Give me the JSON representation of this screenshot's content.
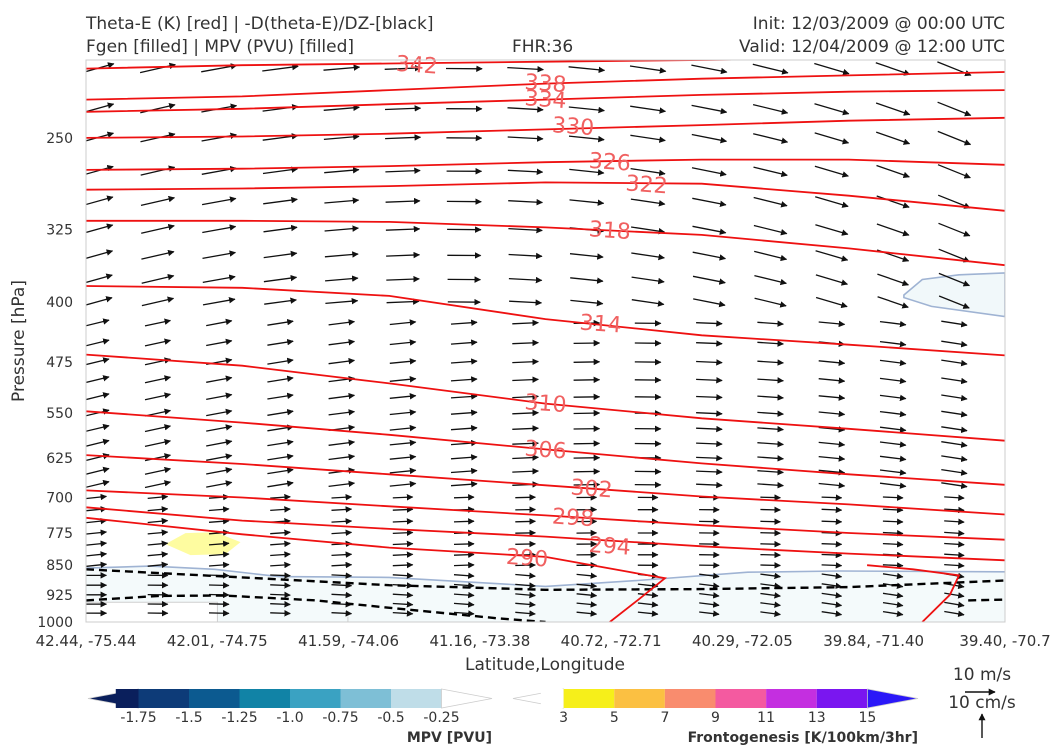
{
  "header": {
    "title_line1": "Theta-E (K) [red] | -D(theta-E)/DZ-[black]",
    "title_line2": "Fgen [filled] | MPV (PVU) [filled]",
    "fhr": "FHR:36",
    "init": "Init: 12/03/2009 @ 00:00 UTC",
    "valid": "Valid: 12/04/2009 @ 12:00 UTC"
  },
  "chart_data": {
    "type": "cross-section",
    "xlabel": "Latitude,Longitude",
    "ylabel": "Pressure [hPa]",
    "x_ticks": [
      "42.44, -75.44",
      "42.01, -74.75",
      "41.59, -74.06",
      "41.16, -73.38",
      "40.72, -72.71",
      "40.29, -72.05",
      "39.84, -71.40",
      "39.40, -70.7"
    ],
    "y_ticks": [
      250,
      325,
      400,
      475,
      550,
      625,
      700,
      775,
      850,
      925,
      1000
    ],
    "ylim": [
      1000,
      200
    ],
    "y_scale": "log",
    "grid": false,
    "theta_e_color": "#ee1111",
    "theta_e_contours": [
      {
        "value": 342,
        "label": "342",
        "points": [
          [
            0,
            205
          ],
          [
            0.17,
            203
          ],
          [
            0.33,
            202
          ],
          [
            0.5,
            201
          ],
          [
            0.67,
            200
          ],
          [
            0.83,
            199
          ],
          [
            1,
            198
          ]
        ]
      },
      {
        "value": 338,
        "label": "338",
        "points": [
          [
            0,
            224
          ],
          [
            0.17,
            222
          ],
          [
            0.33,
            218
          ],
          [
            0.5,
            214
          ],
          [
            0.67,
            211
          ],
          [
            0.83,
            209
          ],
          [
            1,
            207
          ]
        ]
      },
      {
        "value": 334,
        "label": "334",
        "points": [
          [
            0,
            232
          ],
          [
            0.17,
            230
          ],
          [
            0.33,
            227
          ],
          [
            0.5,
            224
          ],
          [
            0.67,
            221
          ],
          [
            0.83,
            219
          ],
          [
            1,
            218
          ]
        ]
      },
      {
        "value": 330,
        "label": "330",
        "points": [
          [
            0,
            250
          ],
          [
            0.17,
            249
          ],
          [
            0.33,
            247
          ],
          [
            0.5,
            244
          ],
          [
            0.67,
            241
          ],
          [
            0.83,
            238
          ],
          [
            1,
            236
          ]
        ]
      },
      {
        "value": 326,
        "label": "326",
        "points": [
          [
            0,
            274
          ],
          [
            0.17,
            273
          ],
          [
            0.33,
            271
          ],
          [
            0.5,
            268
          ],
          [
            0.67,
            266
          ],
          [
            0.83,
            266
          ],
          [
            1,
            270
          ]
        ]
      },
      {
        "value": 322,
        "label": "322",
        "points": [
          [
            0,
            290
          ],
          [
            0.17,
            289
          ],
          [
            0.33,
            287
          ],
          [
            0.5,
            284
          ],
          [
            0.67,
            285
          ],
          [
            0.83,
            295
          ],
          [
            1,
            308
          ]
        ]
      },
      {
        "value": 318,
        "label": "318",
        "points": [
          [
            0,
            317
          ],
          [
            0.17,
            317
          ],
          [
            0.33,
            318
          ],
          [
            0.5,
            323
          ],
          [
            0.67,
            330
          ],
          [
            0.83,
            343
          ],
          [
            1,
            360
          ]
        ]
      },
      {
        "value": 314,
        "label": "314",
        "points": [
          [
            0,
            382
          ],
          [
            0.17,
            384
          ],
          [
            0.33,
            393
          ],
          [
            0.5,
            420
          ],
          [
            0.67,
            440
          ],
          [
            0.83,
            452
          ],
          [
            1,
            466
          ]
        ]
      },
      {
        "value": 310,
        "label": "310",
        "points": [
          [
            0,
            465
          ],
          [
            0.17,
            480
          ],
          [
            0.33,
            505
          ],
          [
            0.5,
            535
          ],
          [
            0.67,
            558
          ],
          [
            0.83,
            575
          ],
          [
            1,
            595
          ]
        ]
      },
      {
        "value": 306,
        "label": "306",
        "points": [
          [
            0,
            547
          ],
          [
            0.17,
            565
          ],
          [
            0.33,
            585
          ],
          [
            0.5,
            610
          ],
          [
            0.67,
            635
          ],
          [
            0.83,
            655
          ],
          [
            1,
            675
          ]
        ]
      },
      {
        "value": 302,
        "label": "302",
        "points": [
          [
            0,
            620
          ],
          [
            0.17,
            636
          ],
          [
            0.33,
            655
          ],
          [
            0.5,
            676
          ],
          [
            0.67,
            698
          ],
          [
            0.83,
            714
          ],
          [
            1,
            735
          ]
        ]
      },
      {
        "value": 298,
        "label": "298",
        "points": [
          [
            0,
            686
          ],
          [
            0.17,
            700
          ],
          [
            0.33,
            718
          ],
          [
            0.5,
            737
          ],
          [
            0.67,
            758
          ],
          [
            0.83,
            775
          ],
          [
            1,
            790
          ]
        ]
      },
      {
        "value": 294,
        "label": "294",
        "points": [
          [
            0,
            720
          ],
          [
            0.17,
            748
          ],
          [
            0.33,
            766
          ],
          [
            0.5,
            783
          ],
          [
            0.67,
            805
          ],
          [
            0.83,
            822
          ],
          [
            1,
            838
          ]
        ]
      },
      {
        "value": 290,
        "label": "290",
        "points": [
          [
            0,
            742
          ],
          [
            0.17,
            778
          ],
          [
            0.33,
            808
          ],
          [
            0.5,
            830
          ],
          [
            0.59,
            866
          ],
          [
            0.63,
            882
          ],
          [
            0.6,
            940
          ],
          [
            0.57,
            1000
          ]
        ]
      },
      {
        "value": 290,
        "label": "",
        "points": [
          [
            0.91,
            1000
          ],
          [
            0.94,
            925
          ],
          [
            0.95,
            875
          ],
          [
            0.9,
            860
          ],
          [
            0.85,
            850
          ]
        ]
      }
    ],
    "stability_line": [
      {
        "points": [
          [
            0,
            860
          ],
          [
            0.17,
            880
          ],
          [
            0.33,
            900
          ],
          [
            0.5,
            912
          ],
          [
            0.67,
            910
          ],
          [
            0.83,
            905
          ],
          [
            1,
            888
          ]
        ]
      },
      {
        "points": [
          [
            0,
            940
          ],
          [
            0.08,
            928
          ],
          [
            0.15,
            927
          ],
          [
            0.25,
            940
          ],
          [
            0.35,
            965
          ],
          [
            0.45,
            990
          ],
          [
            0.5,
            1000
          ]
        ]
      },
      {
        "points": [
          [
            0.96,
            940
          ],
          [
            1,
            938
          ]
        ]
      }
    ],
    "mpv_region_outline": {
      "points": [
        [
          0,
          857
        ],
        [
          0.07,
          852
        ],
        [
          0.14,
          860
        ],
        [
          0.21,
          878
        ],
        [
          0.33,
          880
        ],
        [
          0.5,
          903
        ],
        [
          0.6,
          888
        ],
        [
          0.72,
          867
        ],
        [
          0.82,
          864
        ],
        [
          1,
          866
        ]
      ]
    },
    "mpv_region_upper": {
      "points": [
        [
          0.89,
          392
        ],
        [
          0.91,
          375
        ],
        [
          0.95,
          370
        ],
        [
          1,
          368
        ],
        [
          1,
          417
        ],
        [
          0.92,
          405
        ],
        [
          0.89,
          395
        ]
      ]
    },
    "fgen_patch": {
      "value": 3,
      "center": [
        0.13,
        800
      ]
    },
    "mpv_colorbar": {
      "label": "MPV [PVU]",
      "ticks": [
        "-1.75",
        "-1.5",
        "-1.25",
        "-1.0",
        "-0.75",
        "-0.5",
        "-0.25"
      ],
      "colors": [
        "#0a1f5c",
        "#0d3b78",
        "#0c5a90",
        "#1183a6",
        "#3aa2c2",
        "#7ebfd6",
        "#bfdde8",
        "#ffffff"
      ]
    },
    "fgen_colorbar": {
      "label": "Frontogenesis [K/100km/3hr]",
      "ticks": [
        "3",
        "5",
        "7",
        "9",
        "11",
        "13",
        "15"
      ],
      "colors": [
        "#ffffff",
        "#f6ef1a",
        "#fbc042",
        "#f98c6e",
        "#f45aa0",
        "#c42fe0",
        "#7a16f0",
        "#2b18f8"
      ]
    },
    "wind_scale": {
      "horizontal": "10 m/s",
      "vertical": "10 cm/s"
    }
  }
}
